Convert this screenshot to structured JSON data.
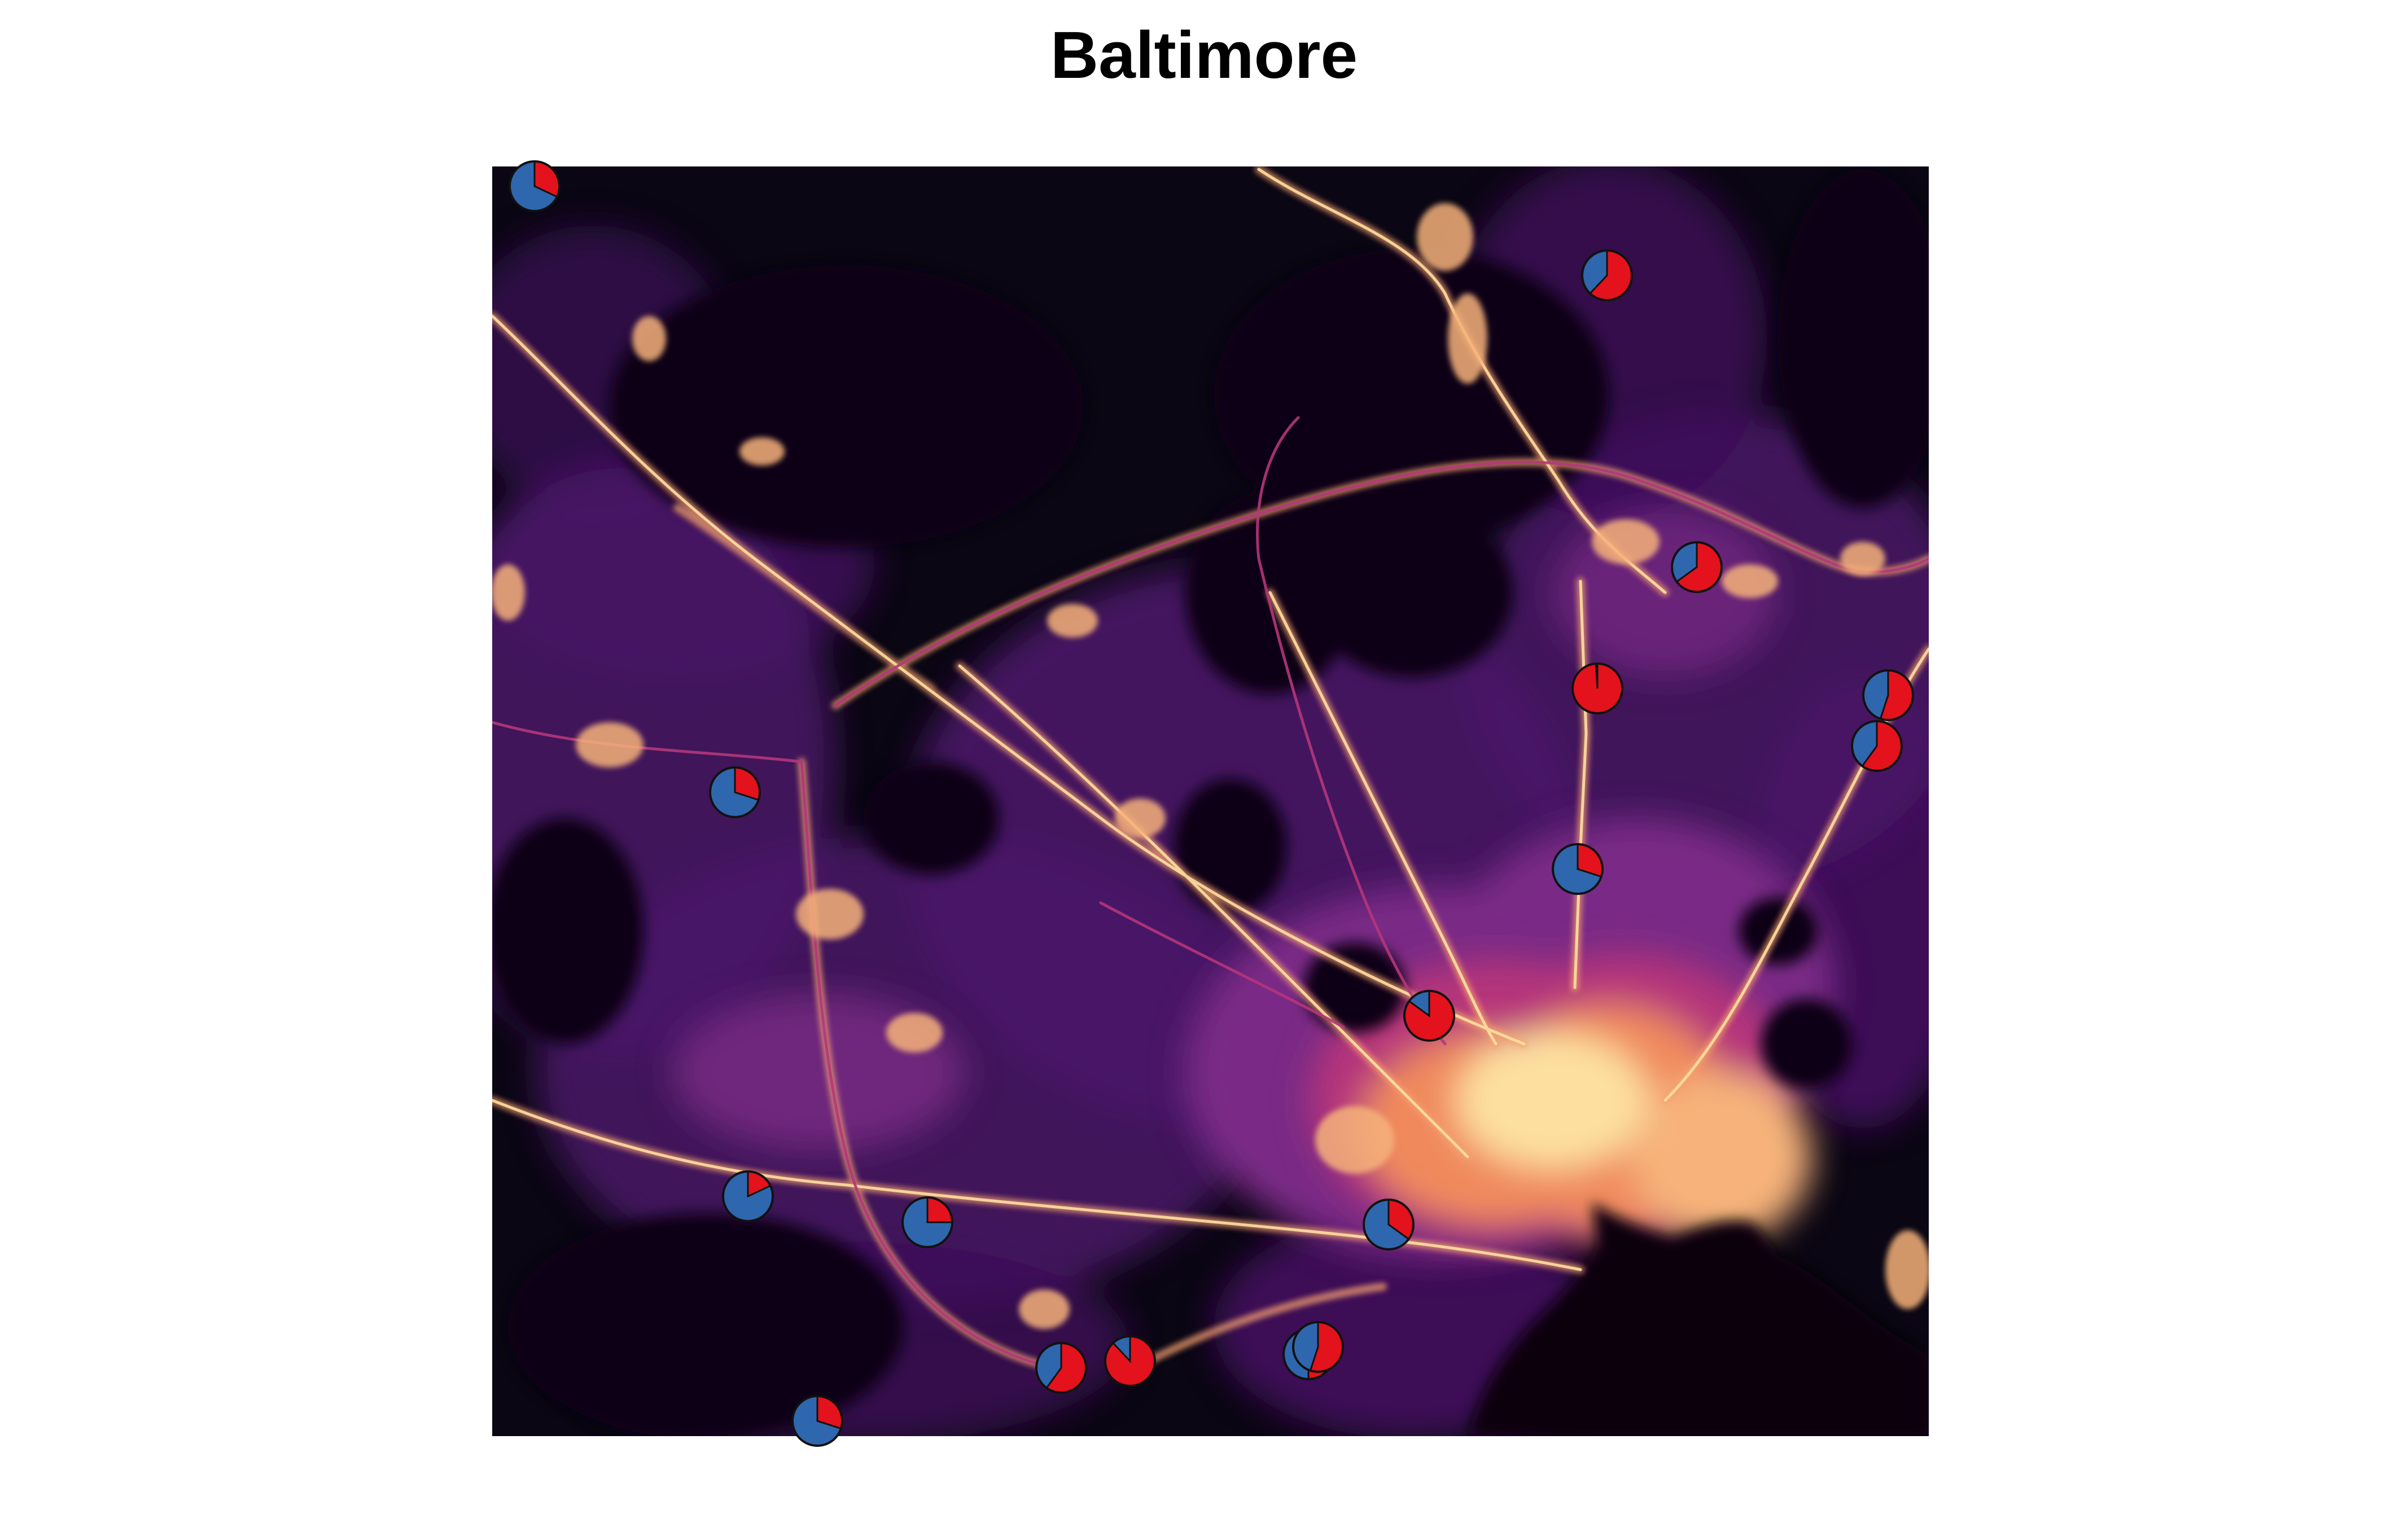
{
  "title": "Baltimore",
  "colors": {
    "background": "#ffffff",
    "map_base": "#0a0613",
    "dim_purple": "#4a1468",
    "mid_purple": "#7a2a86",
    "magenta": "#b5367a",
    "orange": "#f08a5d",
    "bright": "#fde0a0",
    "pie_blue": "#2e67ad",
    "pie_red": "#e3121c",
    "pie_stroke": "#111111"
  },
  "pie_markers": [
    {
      "id": "p1",
      "red_fraction": 0.32
    },
    {
      "id": "p2",
      "red_fraction": 0.62
    },
    {
      "id": "p3",
      "red_fraction": 0.65
    },
    {
      "id": "p4",
      "red_fraction": 0.99
    },
    {
      "id": "p5",
      "red_fraction": 0.55
    },
    {
      "id": "p6",
      "red_fraction": 0.6
    },
    {
      "id": "p7",
      "red_fraction": 0.3
    },
    {
      "id": "p8",
      "red_fraction": 0.3
    },
    {
      "id": "p9",
      "red_fraction": 0.85
    },
    {
      "id": "p10",
      "red_fraction": 0.18
    },
    {
      "id": "p11",
      "red_fraction": 0.25
    },
    {
      "id": "p12",
      "red_fraction": 0.35
    },
    {
      "id": "p13",
      "red_fraction": 0.6
    },
    {
      "id": "p14",
      "red_fraction": 0.88
    },
    {
      "id": "p15",
      "red_fraction": 0.5
    },
    {
      "id": "p16",
      "red_fraction": 0.55
    },
    {
      "id": "p17",
      "red_fraction": 0.3
    }
  ]
}
